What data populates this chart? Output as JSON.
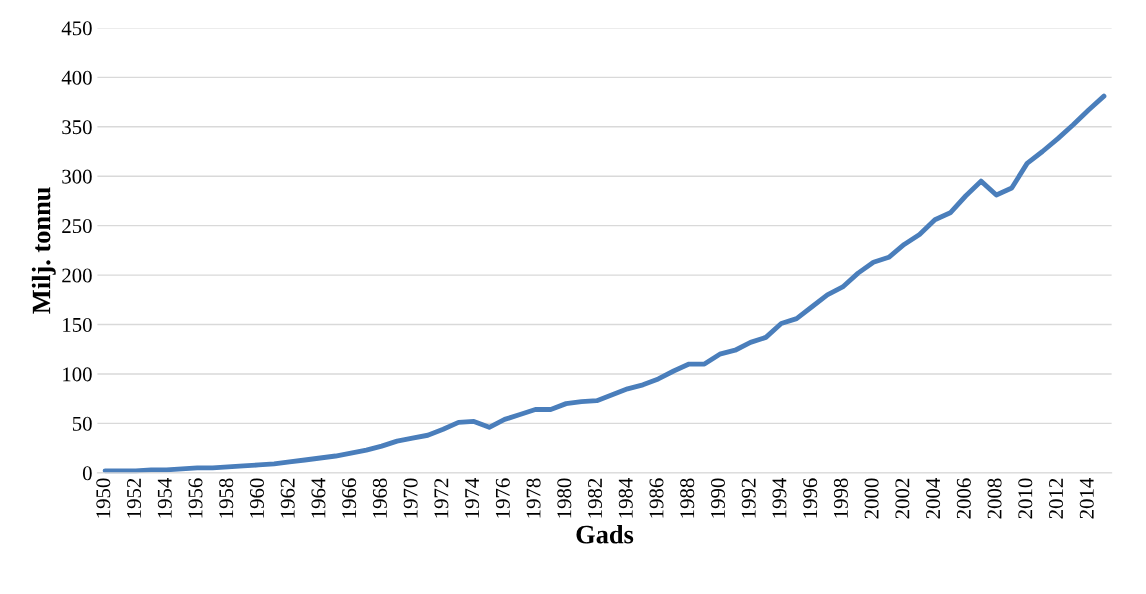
{
  "chart_data": {
    "type": "line",
    "xlabel": "Gads",
    "ylabel": "Milj. tonnu",
    "categories": [
      "1950",
      null,
      "1952",
      null,
      "1954",
      null,
      "1956",
      null,
      "1958",
      null,
      "1960",
      null,
      "1962",
      null,
      "1964",
      null,
      "1966",
      null,
      "1968",
      null,
      "1970",
      null,
      "1972",
      null,
      "1974",
      null,
      "1976",
      null,
      "1978",
      null,
      "1980",
      null,
      "1982",
      null,
      "1984",
      null,
      "1986",
      null,
      "1988",
      null,
      "1990",
      null,
      "1992",
      null,
      "1994",
      null,
      "1996",
      null,
      "1998",
      null,
      "2000",
      null,
      "2002",
      null,
      "2004",
      null,
      "2006",
      null,
      "2008",
      null,
      "2010",
      null,
      "2012",
      null,
      "2014",
      null
    ],
    "series": [
      {
        "color": "#4a7ebb",
        "values": [
          2,
          2,
          2,
          3,
          3,
          4,
          5,
          5,
          6,
          7,
          8,
          9,
          11,
          13,
          15,
          17,
          20,
          23,
          27,
          32,
          35,
          38,
          44,
          51,
          52,
          46,
          54,
          59,
          64,
          64,
          70,
          72,
          73,
          79,
          85,
          89,
          95,
          103,
          110,
          110,
          120,
          124,
          132,
          137,
          151,
          156,
          168,
          180,
          188,
          202,
          213,
          218,
          231,
          241,
          256,
          263,
          280,
          295,
          281,
          288,
          313,
          325,
          338,
          352,
          367,
          381
        ]
      }
    ],
    "ylim": [
      0,
      450
    ],
    "yticks": [
      0,
      50,
      100,
      150,
      200,
      250,
      300,
      350,
      400,
      450
    ],
    "grid": "y",
    "marker": "none",
    "line_style": "solid"
  }
}
